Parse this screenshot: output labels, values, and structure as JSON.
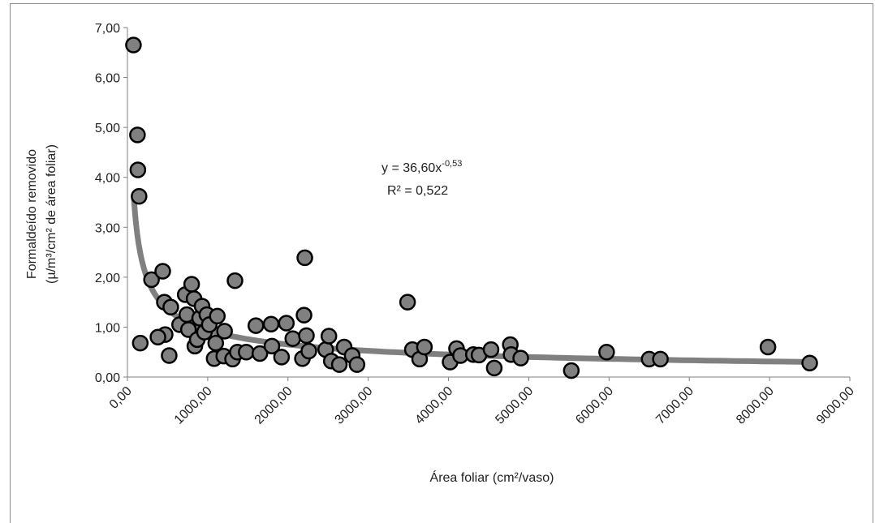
{
  "chart_data": {
    "type": "scatter",
    "xlabel": "Área foliar (cm²/vaso)",
    "ylabel_line1": "Formaldeído removido",
    "ylabel_line2": "(µ/m³/cm² de área foliar)",
    "xlim": [
      0,
      9000
    ],
    "ylim": [
      0,
      7
    ],
    "xticks": [
      "0,00",
      "1000,00",
      "2000,00",
      "3000,00",
      "4000,00",
      "5000,00",
      "6000,00",
      "7000,00",
      "8000,00",
      "9000,00"
    ],
    "yticks": [
      "0,00",
      "1,00",
      "2,00",
      "3,00",
      "4,00",
      "5,00",
      "6,00",
      "7,00"
    ],
    "grid": false,
    "marker_color": "#808080",
    "trend_color": "#808080",
    "trendline": {
      "model": "power",
      "coefficient": 36.6,
      "exponent": -0.53,
      "x_range": [
        80,
        8500
      ],
      "equation_text": "y = 36,60x",
      "equation_exponent": "-0,53",
      "r2_text": "R² = 0,522"
    },
    "points": [
      [
        75,
        6.65
      ],
      [
        125,
        4.85
      ],
      [
        130,
        4.15
      ],
      [
        145,
        3.62
      ],
      [
        160,
        0.68
      ],
      [
        300,
        1.95
      ],
      [
        440,
        2.12
      ],
      [
        460,
        1.5
      ],
      [
        470,
        0.85
      ],
      [
        520,
        0.43
      ],
      [
        540,
        1.4
      ],
      [
        380,
        0.8
      ],
      [
        650,
        1.05
      ],
      [
        720,
        1.65
      ],
      [
        740,
        1.25
      ],
      [
        760,
        0.95
      ],
      [
        800,
        1.86
      ],
      [
        830,
        1.57
      ],
      [
        840,
        0.62
      ],
      [
        870,
        0.75
      ],
      [
        900,
        1.18
      ],
      [
        930,
        1.42
      ],
      [
        960,
        0.9
      ],
      [
        990,
        1.25
      ],
      [
        1020,
        1.05
      ],
      [
        1080,
        0.37
      ],
      [
        1100,
        0.68
      ],
      [
        1120,
        1.22
      ],
      [
        1200,
        0.42
      ],
      [
        1210,
        0.92
      ],
      [
        1310,
        0.36
      ],
      [
        1340,
        1.93
      ],
      [
        1370,
        0.5
      ],
      [
        1480,
        0.5
      ],
      [
        1600,
        1.03
      ],
      [
        1650,
        0.47
      ],
      [
        1790,
        1.06
      ],
      [
        1800,
        0.62
      ],
      [
        1920,
        0.4
      ],
      [
        1980,
        1.08
      ],
      [
        2060,
        0.77
      ],
      [
        2180,
        0.37
      ],
      [
        2200,
        1.24
      ],
      [
        2210,
        2.39
      ],
      [
        2230,
        0.83
      ],
      [
        2260,
        0.52
      ],
      [
        2470,
        0.55
      ],
      [
        2510,
        0.82
      ],
      [
        2540,
        0.32
      ],
      [
        2640,
        0.25
      ],
      [
        2700,
        0.6
      ],
      [
        2800,
        0.43
      ],
      [
        2860,
        0.25
      ],
      [
        3490,
        1.5
      ],
      [
        3550,
        0.55
      ],
      [
        3640,
        0.36
      ],
      [
        3700,
        0.6
      ],
      [
        4020,
        0.3
      ],
      [
        4100,
        0.57
      ],
      [
        4150,
        0.43
      ],
      [
        4310,
        0.45
      ],
      [
        4380,
        0.44
      ],
      [
        4530,
        0.55
      ],
      [
        4570,
        0.18
      ],
      [
        4770,
        0.65
      ],
      [
        4780,
        0.45
      ],
      [
        4900,
        0.38
      ],
      [
        5530,
        0.13
      ],
      [
        5970,
        0.5
      ],
      [
        6500,
        0.36
      ],
      [
        6640,
        0.36
      ],
      [
        7980,
        0.6
      ],
      [
        8500,
        0.28
      ]
    ]
  }
}
